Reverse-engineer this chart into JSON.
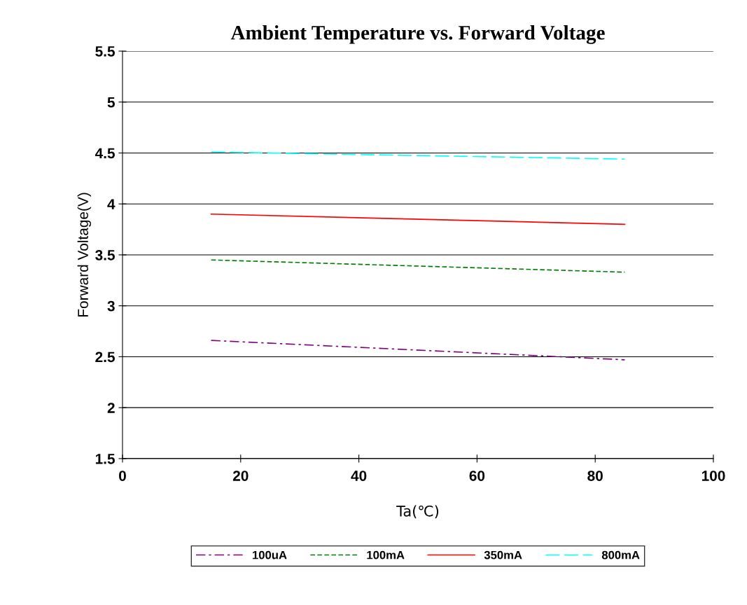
{
  "chart_data": {
    "type": "line",
    "title": "Ambient Temperature vs. Forward Voltage",
    "xlabel": "Ta(℃)",
    "ylabel": "Forward Voltage(V)",
    "x": [
      15,
      85
    ],
    "series": [
      {
        "name": "100uA",
        "color": "#800080",
        "values": [
          2.66,
          2.47
        ],
        "line_style": "dashdot"
      },
      {
        "name": "100mA",
        "color": "#008000",
        "values": [
          3.45,
          3.33
        ],
        "line_style": "dashed"
      },
      {
        "name": "350mA",
        "color": "#ff0000",
        "values": [
          3.9,
          3.8
        ],
        "line_style": "solid"
      },
      {
        "name": "800mA",
        "color": "#00ffff",
        "values": [
          4.51,
          4.44
        ],
        "line_style": "longdash"
      }
    ],
    "xlim": [
      0,
      100
    ],
    "xticks": [
      0,
      20,
      40,
      60,
      80,
      100
    ],
    "ylim": [
      1.5,
      5.5
    ],
    "yticks": [
      1.5,
      2,
      2.5,
      3,
      3.5,
      4,
      4.5,
      5,
      5.5
    ],
    "grid": "y",
    "legend": "bottom",
    "marker": "none"
  }
}
